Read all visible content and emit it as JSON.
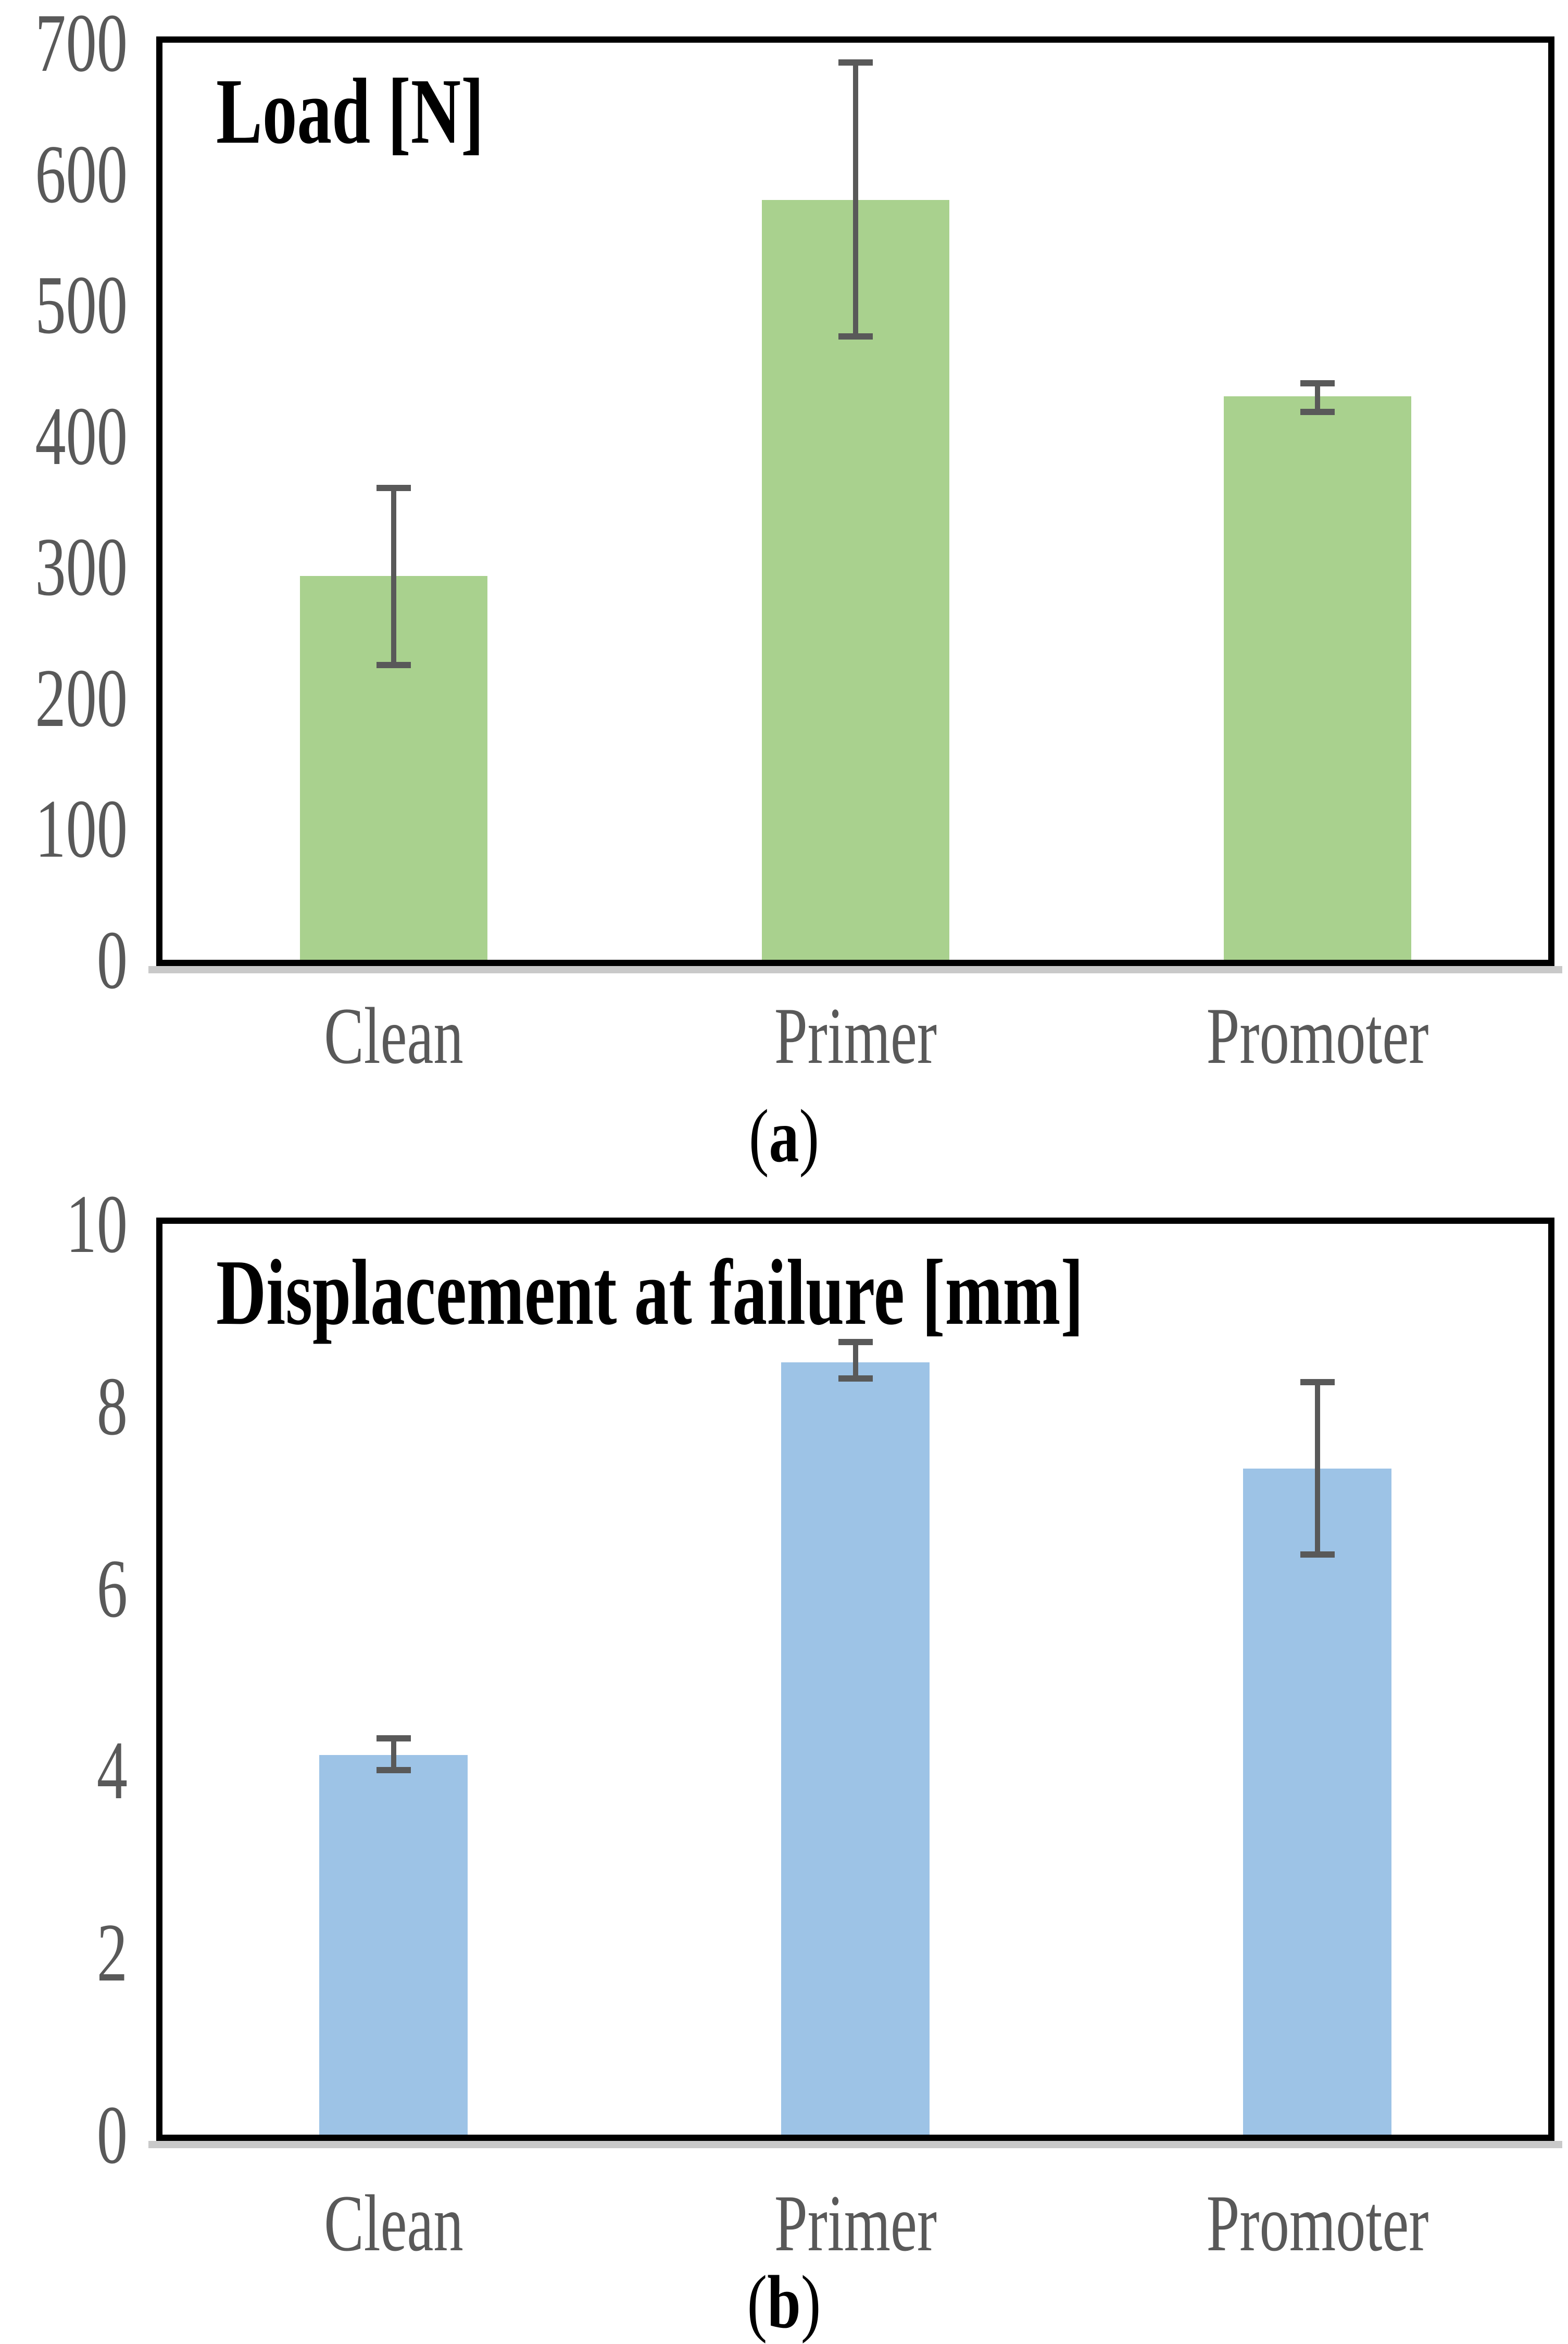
{
  "figure": {
    "background": "#ffffff",
    "frame_color": "#000000",
    "axis_shadow_color": "#c9c9c9",
    "text_gray": "#595959"
  },
  "chart_data": [
    {
      "type": "bar",
      "title": "Load [N]",
      "caption_open": "(",
      "caption_letter": "a",
      "caption_close": ")",
      "xlabel": "",
      "ylabel": "Load [N]",
      "categories": [
        "Clean",
        "Primer",
        "Promoter"
      ],
      "values": [
        293,
        580,
        430
      ],
      "error_low": [
        225,
        476,
        418
      ],
      "error_high": [
        360,
        685,
        440
      ],
      "ylim": [
        0,
        700
      ],
      "yticks": [
        0,
        100,
        200,
        300,
        400,
        500,
        600,
        700
      ],
      "bar_color": "#A9D18E",
      "error_bar_color": "#595959",
      "tick_label_color": "#595959",
      "grid": false,
      "legend": null
    },
    {
      "type": "bar",
      "title": "Displacement at failure [mm]",
      "caption_open": "(",
      "caption_letter": "b",
      "caption_close": ")",
      "xlabel": "",
      "ylabel": "Displacement at failure [mm]",
      "categories": [
        "Clean",
        "Primer",
        "Promoter"
      ],
      "values": [
        4.17,
        8.48,
        7.31
      ],
      "error_low": [
        4.0,
        8.3,
        6.37
      ],
      "error_high": [
        4.35,
        8.7,
        8.26
      ],
      "ylim": [
        0,
        10
      ],
      "yticks": [
        0,
        2,
        4,
        6,
        8,
        10
      ],
      "bar_color": "#9DC3E6",
      "error_bar_color": "#595959",
      "tick_label_color": "#595959",
      "grid": false,
      "legend": null
    }
  ]
}
